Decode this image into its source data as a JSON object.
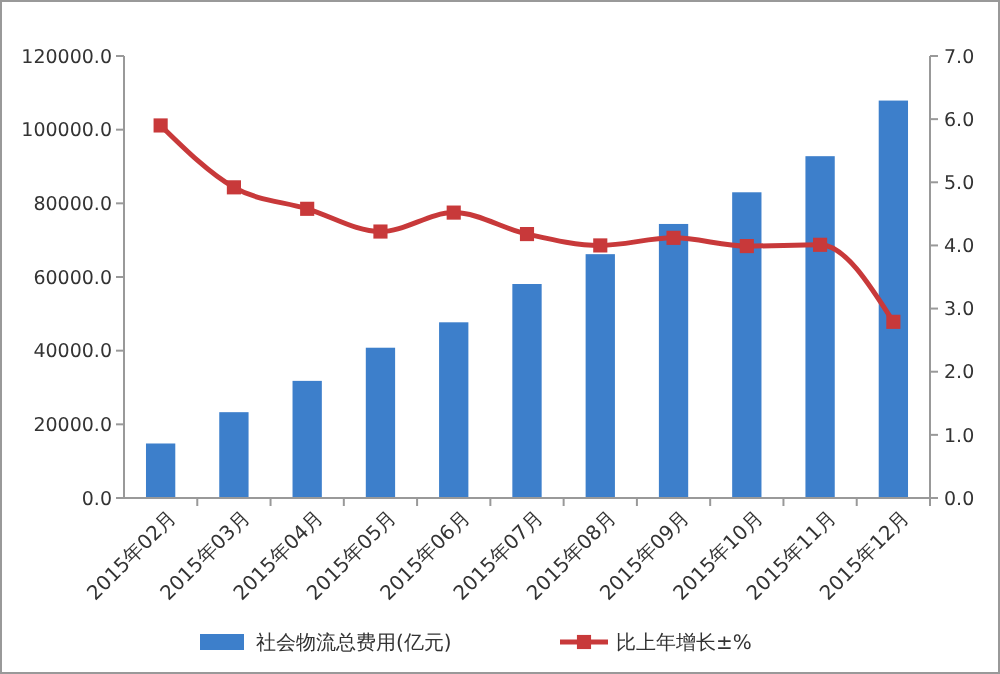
{
  "chart_data": {
    "type": "bar",
    "categories": [
      "2015年02月",
      "2015年03月",
      "2015年04月",
      "2015年05月",
      "2015年06月",
      "2015年07月",
      "2015年08月",
      "2015年09月",
      "2015年10月",
      "2015年11月",
      "2015年12月"
    ],
    "series": [
      {
        "name": "社会物流总费用(亿元)",
        "color": "#3d7fcb",
        "values": [
          14800,
          23300,
          31800,
          40800,
          47700,
          58100,
          66200,
          74400,
          83000,
          92800,
          107900
        ]
      },
      {
        "name": "比上年增长±%",
        "type": "line",
        "axis": "y2",
        "color": "#c8393a",
        "marker": "square",
        "values": [
          5.9,
          4.92,
          4.58,
          4.22,
          4.52,
          4.18,
          4.0,
          4.12,
          3.99,
          4.01,
          2.79
        ]
      }
    ],
    "ylim": [
      0,
      120000
    ],
    "yticks": [
      {
        "value": 0,
        "label": "0.0"
      },
      {
        "value": 20000,
        "label": "20000.0"
      },
      {
        "value": 40000,
        "label": "40000.0"
      },
      {
        "value": 60000,
        "label": "60000.0"
      },
      {
        "value": 80000,
        "label": "80000.0"
      },
      {
        "value": 100000,
        "label": "100000.0"
      },
      {
        "value": 120000,
        "label": "120000.0"
      }
    ],
    "y2lim": [
      0,
      7
    ],
    "y2ticks": [
      {
        "value": 0,
        "label": "0.0"
      },
      {
        "value": 1,
        "label": "1.0"
      },
      {
        "value": 2,
        "label": "2.0"
      },
      {
        "value": 3,
        "label": "3.0"
      },
      {
        "value": 4,
        "label": "4.0"
      },
      {
        "value": 5,
        "label": "5.0"
      },
      {
        "value": 6,
        "label": "6.0"
      },
      {
        "value": 7,
        "label": "7.0"
      }
    ],
    "grid": false,
    "legend": "bottom"
  }
}
